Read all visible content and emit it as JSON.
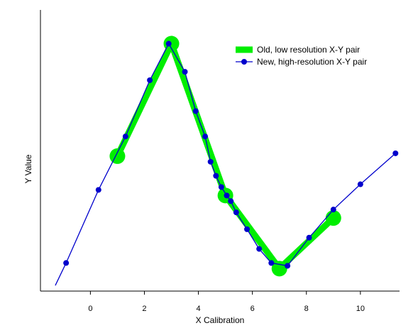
{
  "chart_data": {
    "type": "line",
    "title": "",
    "xlabel": "X Calibration",
    "ylabel": "Y Value",
    "xlim": [
      -1.85,
      11.45
    ],
    "ylim": [
      0,
      100
    ],
    "x_ticks": [
      0,
      2,
      4,
      6,
      8,
      10
    ],
    "x_tick_labels": [
      "0",
      "2",
      "4",
      "6",
      "8",
      "10"
    ],
    "grid": false,
    "legend": {
      "placement": "top-right"
    },
    "series": [
      {
        "name": "Old, low resolution X-Y pair",
        "style": "thick-line-large-markers",
        "color": "#00ee00",
        "x": [
          1,
          3,
          5,
          7,
          9
        ],
        "y": [
          48,
          88,
          34,
          8,
          26
        ]
      },
      {
        "name": "New, high-resolution X-Y pair",
        "style": "thin-line-small-markers",
        "color": "#0000cc",
        "x": [
          -1.3,
          -0.9,
          0.3,
          1.3,
          2.2,
          2.9,
          3.5,
          3.9,
          4.25,
          4.45,
          4.65,
          4.85,
          5.05,
          5.2,
          5.4,
          5.8,
          6.25,
          6.7,
          7.3,
          8.1,
          9.0,
          10.0,
          11.3
        ],
        "y": [
          2,
          10,
          36,
          55,
          75,
          88,
          78,
          64,
          55,
          46,
          41,
          37,
          34,
          32,
          28,
          22,
          15,
          10,
          9,
          19,
          29,
          38,
          49
        ]
      }
    ]
  }
}
